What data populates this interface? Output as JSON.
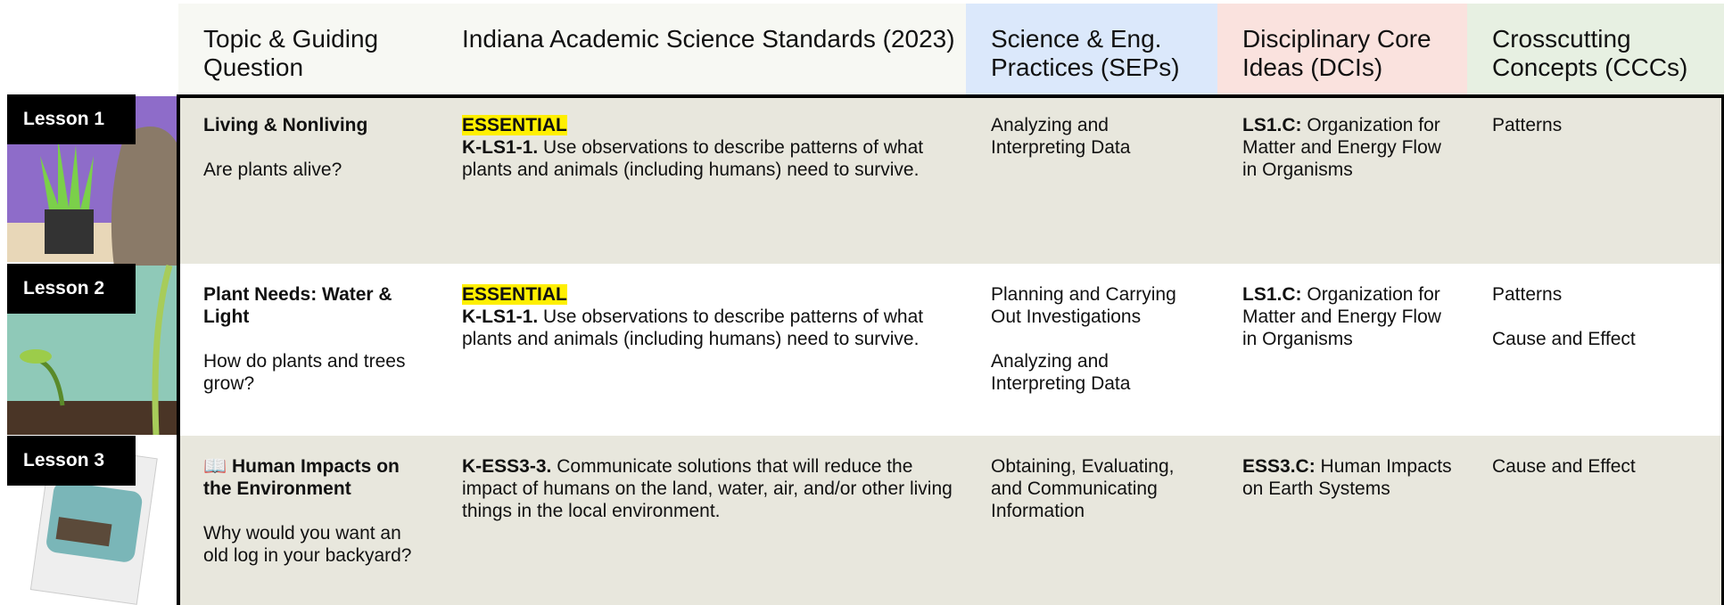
{
  "header": {
    "columns": [
      "Topic & Guiding Question",
      "Indiana Academic Science Standards (2023)",
      "Science & Eng. Practices (SEPs)",
      "Disciplinary Core Ideas (DCIs)",
      "Crosscutting Concepts (CCCs)"
    ]
  },
  "rows": [
    {
      "lesson": "Lesson 1",
      "title": "Living & Nonliving",
      "question": "Are plants alive?",
      "essential": "ESSENTIAL",
      "code": "K-LS1-1.",
      "standard": "Use observations to describe patterns of what plants and animals (including humans) need to survive.",
      "seps": [
        "Analyzing and Interpreting Data"
      ],
      "dci_code": "LS1.C:",
      "dci": "Organization for Matter and Energy Flow in Organisms",
      "cccs": [
        "Patterns"
      ]
    },
    {
      "lesson": "Lesson 2",
      "title": "Plant Needs: Water & Light",
      "question": "How do plants and trees grow?",
      "essential": "ESSENTIAL",
      "code": "K-LS1-1.",
      "standard": "Use observations to describe patterns of what plants and animals (including humans) need to survive.",
      "seps": [
        "Planning and Carrying Out Investigations",
        "Analyzing and Interpreting Data"
      ],
      "dci_code": "LS1.C:",
      "dci": "Organization for Matter and Energy Flow in Organisms",
      "cccs": [
        "Patterns",
        "Cause and Effect"
      ]
    },
    {
      "lesson": "Lesson 3",
      "title": "📖 Human Impacts on the Environment",
      "question": "Why would you want an old log in your backyard?",
      "code": "K-ESS3-3.",
      "standard": "Communicate solutions that will reduce the impact of humans on the land, water, air, and/or other living things in the local environment.",
      "seps": [
        "Obtaining, Evaluating, and Communicating Information"
      ],
      "dci_code": "ESS3.C:",
      "dci": "Human Impacts on Earth Systems",
      "cccs": [
        "Cause and Effect"
      ]
    }
  ]
}
